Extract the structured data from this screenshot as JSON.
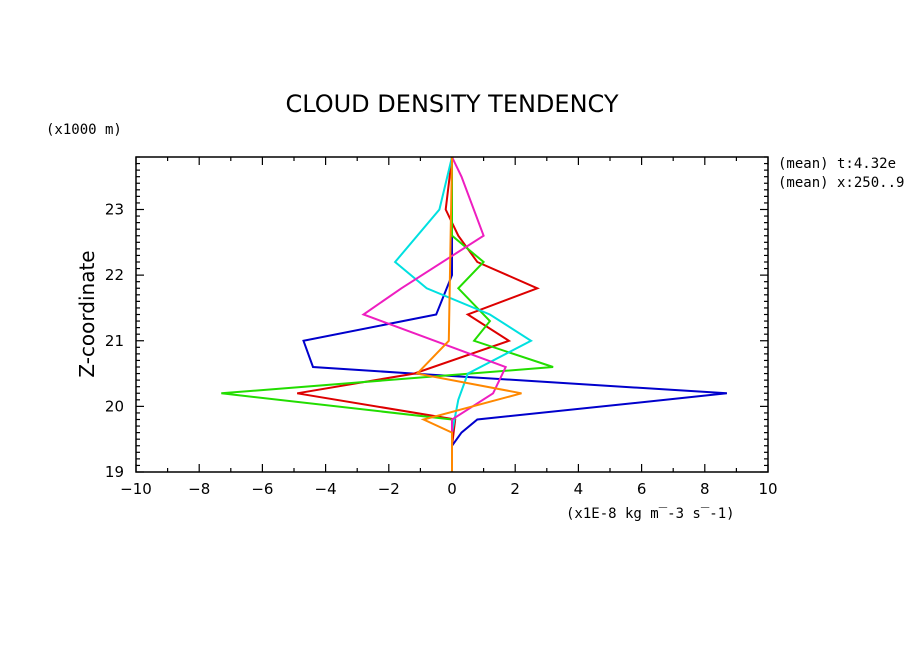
{
  "chart_data": {
    "type": "line",
    "title": "CLOUD DENSITY TENDENCY",
    "ylabel": "Z-coordinate",
    "yunit": "(x1000 m)",
    "xunit": "(x1E-8 kg m‾-3 s‾-1)",
    "meta": [
      "(mean) t:4.32e",
      "(mean) x:250..9"
    ],
    "xlim": [
      -10,
      10
    ],
    "ylim": [
      19,
      23.8
    ],
    "xticks": [
      "-10",
      "-8",
      "-6",
      "-4",
      "-2",
      "0",
      "2",
      "4",
      "6",
      "8",
      "10"
    ],
    "yticks": [
      "19",
      "20",
      "21",
      "22",
      "23"
    ],
    "series": [
      {
        "color": "#0000cc",
        "points": [
          [
            0,
            19
          ],
          [
            0,
            19.4
          ],
          [
            0.3,
            19.6
          ],
          [
            0.8,
            19.8
          ],
          [
            8.7,
            20.2
          ],
          [
            -1.2,
            20.5
          ],
          [
            -4.4,
            20.6
          ],
          [
            -4.7,
            21
          ],
          [
            -0.5,
            21.4
          ],
          [
            0,
            22
          ],
          [
            0,
            23.8
          ]
        ]
      },
      {
        "color": "#dd0000",
        "points": [
          [
            0,
            19
          ],
          [
            0,
            19.4
          ],
          [
            0.1,
            19.8
          ],
          [
            -4.9,
            20.2
          ],
          [
            -1.2,
            20.5
          ],
          [
            1.8,
            21
          ],
          [
            0.5,
            21.4
          ],
          [
            2.7,
            21.8
          ],
          [
            0.8,
            22.2
          ],
          [
            0.2,
            22.6
          ],
          [
            -0.2,
            23
          ],
          [
            0,
            23.8
          ]
        ]
      },
      {
        "color": "#22dd00",
        "points": [
          [
            0,
            19
          ],
          [
            0,
            19.8
          ],
          [
            -7.3,
            20.2
          ],
          [
            3.2,
            20.6
          ],
          [
            0.7,
            21
          ],
          [
            1.2,
            21.3
          ],
          [
            0.2,
            21.8
          ],
          [
            1,
            22.2
          ],
          [
            0,
            22.6
          ],
          [
            0,
            23.8
          ]
        ]
      },
      {
        "color": "#00e0e0",
        "points": [
          [
            0,
            19
          ],
          [
            0,
            19.6
          ],
          [
            0.2,
            20.1
          ],
          [
            0.5,
            20.5
          ],
          [
            2.5,
            21
          ],
          [
            1.2,
            21.4
          ],
          [
            -0.8,
            21.8
          ],
          [
            -1.8,
            22.2
          ],
          [
            -0.4,
            23
          ],
          [
            0,
            23.8
          ]
        ]
      },
      {
        "color": "#ee1ec0",
        "points": [
          [
            0,
            19
          ],
          [
            0,
            19.4
          ],
          [
            0,
            19.8
          ],
          [
            1.3,
            20.2
          ],
          [
            1.7,
            20.6
          ],
          [
            -2.8,
            21.4
          ],
          [
            -1.6,
            21.8
          ],
          [
            1,
            22.6
          ],
          [
            0.3,
            23.5
          ],
          [
            0,
            23.8
          ]
        ]
      },
      {
        "color": "#ff8800",
        "points": [
          [
            0,
            19
          ],
          [
            0,
            19.6
          ],
          [
            -0.9,
            19.8
          ],
          [
            2.2,
            20.2
          ],
          [
            -1.1,
            20.5
          ],
          [
            -0.1,
            21
          ],
          [
            0,
            23.8
          ]
        ]
      }
    ]
  }
}
